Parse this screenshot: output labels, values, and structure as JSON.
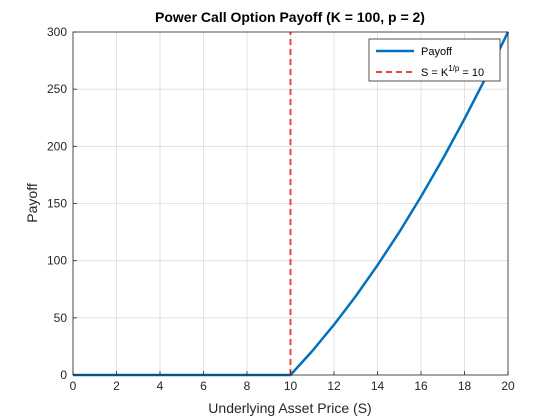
{
  "chart_data": {
    "type": "line",
    "title": "Power Call Option Payoff (K = 100, p = 2)",
    "xlabel": "Underlying Asset Price (S)",
    "ylabel": "Payoff",
    "xlim": [
      0,
      20
    ],
    "ylim": [
      0,
      300
    ],
    "xticks": [
      "0",
      "2",
      "4",
      "6",
      "8",
      "10",
      "12",
      "14",
      "16",
      "18",
      "20"
    ],
    "yticks": [
      "0",
      "50",
      "100",
      "150",
      "200",
      "250",
      "300"
    ],
    "grid": true,
    "legend_position": "top-right",
    "series": [
      {
        "name": "Payoff",
        "style": "solid",
        "color": "#0072BD",
        "x": [
          0,
          2,
          4,
          6,
          8,
          10,
          11,
          12,
          13,
          14,
          15,
          16,
          17,
          18,
          19,
          20
        ],
        "y": [
          0,
          0,
          0,
          0,
          0,
          0,
          21,
          44,
          69,
          96,
          125,
          156,
          189,
          224,
          261,
          300
        ]
      },
      {
        "name": "S = K1/p = 10",
        "style": "dashed",
        "color": "#E8474A",
        "x": [
          10,
          10
        ],
        "y": [
          0,
          300
        ]
      }
    ]
  },
  "legend": {
    "payoff_label": "Payoff",
    "threshold_prefix": "S = K",
    "threshold_sup": "1/p",
    "threshold_suffix": " = 10"
  }
}
